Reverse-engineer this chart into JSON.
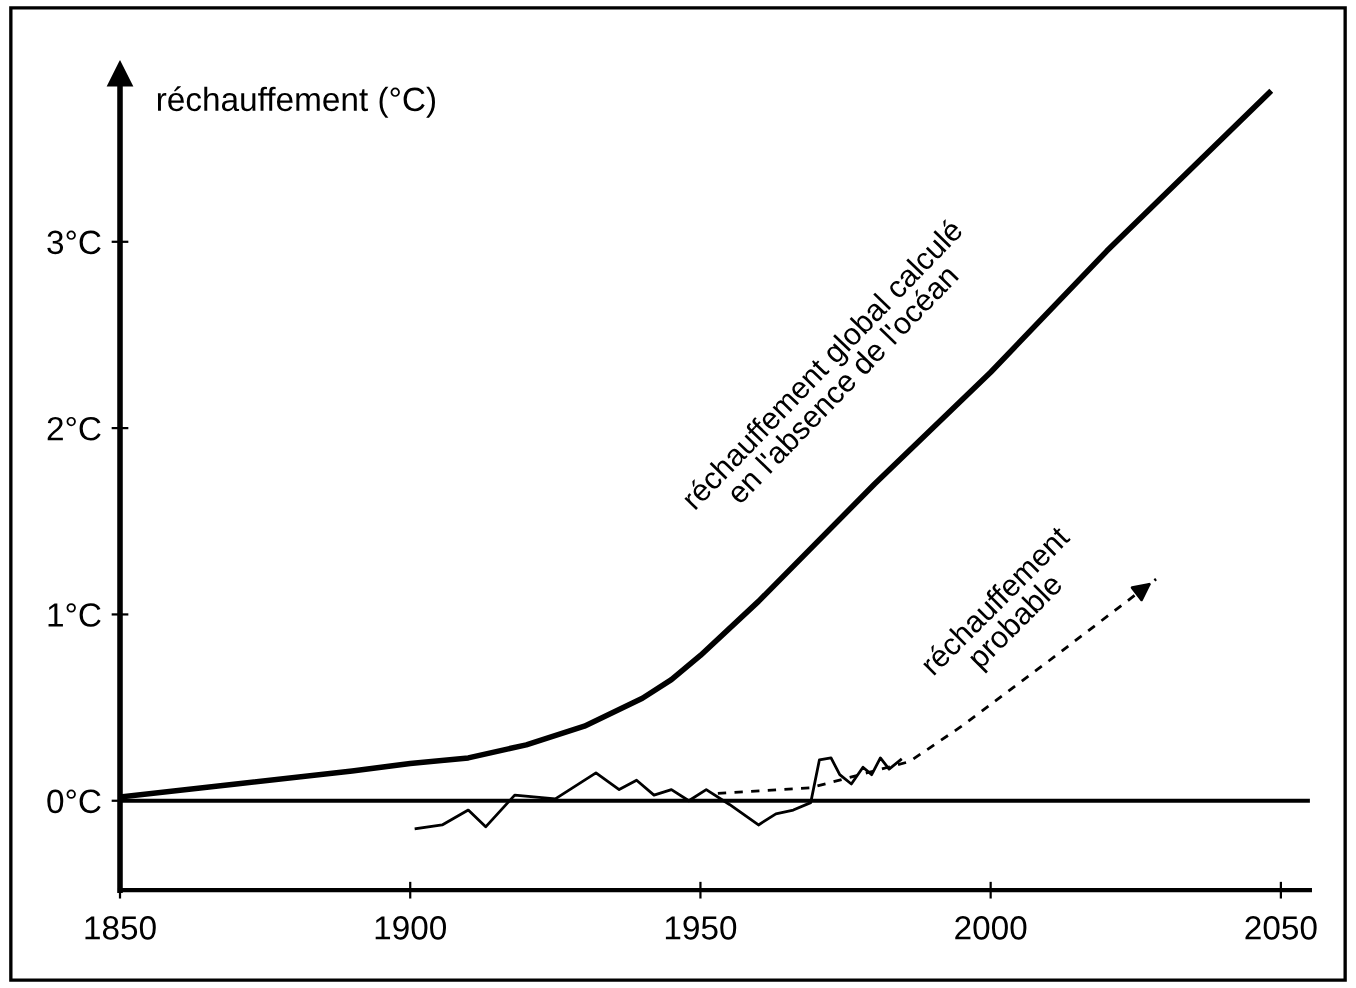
{
  "chart_data": {
    "type": "line",
    "ylabel": "réchauffement (°C)",
    "xlim": [
      1850,
      2055
    ],
    "ylim": [
      -0.48,
      3.9
    ],
    "xticks": [
      1850,
      1900,
      1950,
      2000,
      2050
    ],
    "yticks": [
      {
        "value": 0,
        "label": "0°C"
      },
      {
        "value": 1,
        "label": "1°C"
      },
      {
        "value": 2,
        "label": "2°C"
      },
      {
        "value": 3,
        "label": "3°C"
      }
    ],
    "grid": false,
    "legend": false,
    "marker": "none",
    "ref_lines": [
      {
        "axis": "y",
        "value": 0,
        "label": null,
        "color": "#000000"
      }
    ],
    "series": [
      {
        "color": "#000000",
        "line_style": "solid",
        "x": [
          1850,
          1870,
          1890,
          1900,
          1910,
          1920,
          1930,
          1940,
          1945,
          1950,
          1960,
          1980,
          2000,
          2020,
          2048
        ],
        "values": [
          0.02,
          0.09,
          0.16,
          0.2,
          0.23,
          0.3,
          0.4,
          0.55,
          0.65,
          0.78,
          1.07,
          1.7,
          2.3,
          2.95,
          3.8
        ]
      },
      {
        "color": "#000000",
        "line_style": "solid",
        "x": [
          1901,
          1905.5,
          1910,
          1913,
          1918,
          1925,
          1932,
          1936,
          1939,
          1942,
          1945,
          1948,
          1951,
          1955,
          1960,
          1963,
          1966,
          1969,
          1970.5,
          1972.5,
          1974,
          1976,
          1978,
          1979.5,
          1981,
          1982.5,
          1984.5
        ],
        "values": [
          -0.15,
          -0.13,
          -0.05,
          -0.14,
          0.03,
          0.01,
          0.15,
          0.06,
          0.11,
          0.03,
          0.06,
          0.0,
          0.06,
          -0.02,
          -0.13,
          -0.07,
          -0.05,
          -0.01,
          0.22,
          0.23,
          0.14,
          0.09,
          0.18,
          0.14,
          0.23,
          0.17,
          0.22
        ]
      },
      {
        "color": "#000000",
        "line_style": "dashed",
        "x": [
          1953,
          1969,
          1986,
          1995,
          2010,
          2028.5
        ],
        "values": [
          0.04,
          0.07,
          0.21,
          0.4,
          0.75,
          1.19
        ]
      }
    ],
    "annotations": [
      "réchauffement global calculé\nen l'absence de l'océan",
      "réchauffement\nprobable"
    ]
  }
}
